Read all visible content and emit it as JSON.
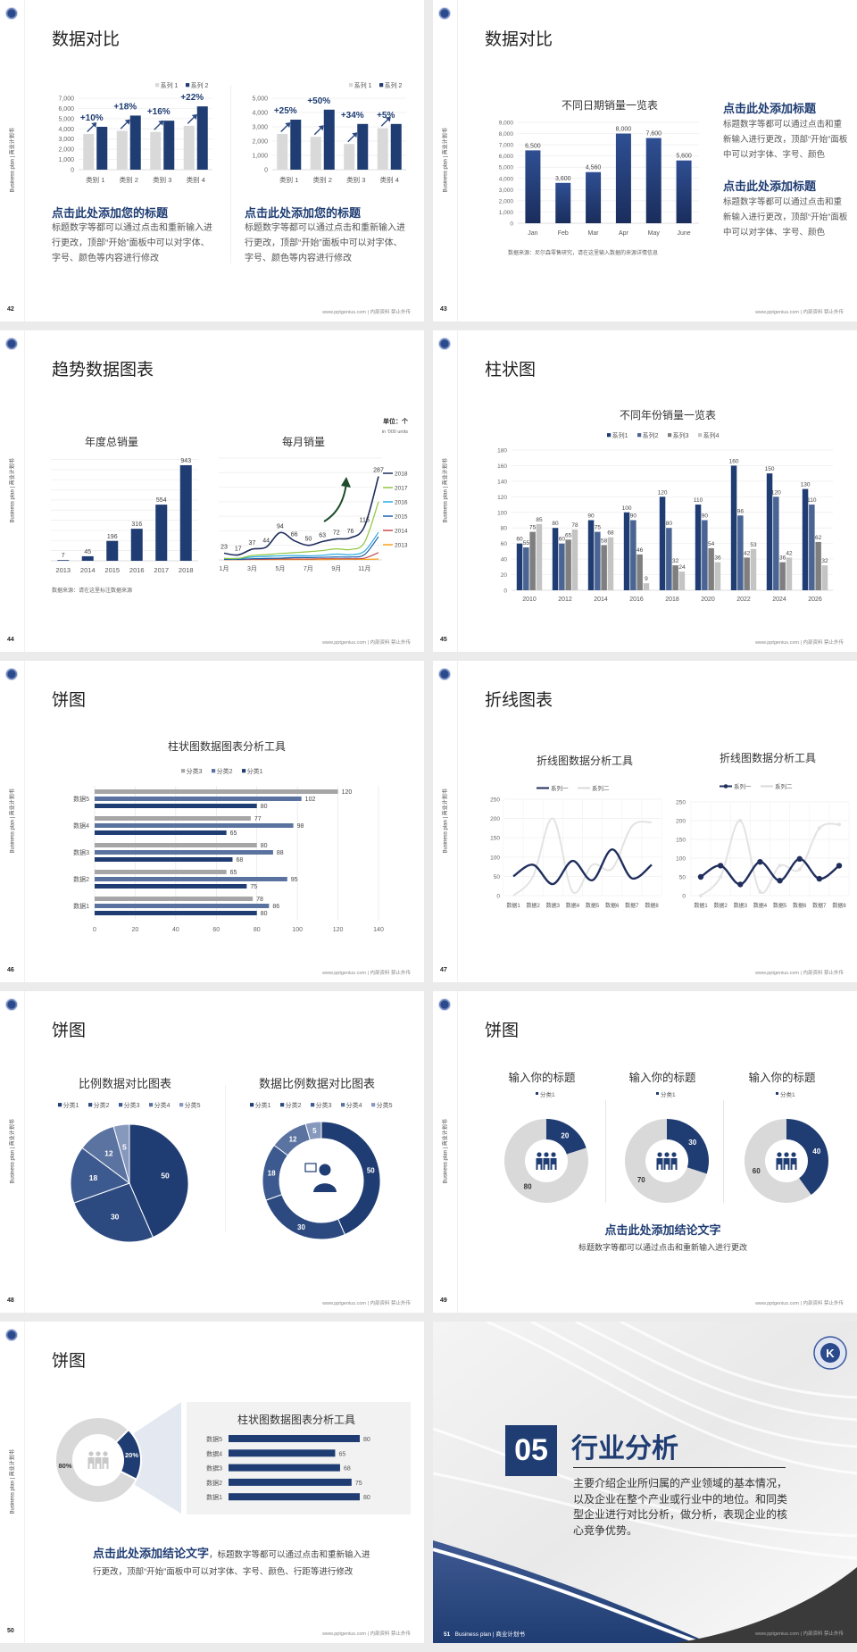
{
  "common": {
    "side_label": "Business plan | 商业计划书",
    "footer": "www.pptgenius.com | 内部资料 禁止外传"
  },
  "colors": {
    "navy": "#1f3d73",
    "light_gray": "#d9d9d9",
    "page_bg": "#ebebeb"
  },
  "slides": [
    {
      "page": "42",
      "title": "数据对比",
      "left": {
        "heading": "点击此处添加您的标题",
        "body": "标题数字等都可以通过点击和重新输入进行更改，顶部“开始”面板中可以对字体、字号、颜色等内容进行修改"
      },
      "right": {
        "heading": "点击此处添加您的标题",
        "body": "标题数字等都可以通过点击和重新输入进行更改，顶部“开始”面板中可以对字体、字号、颜色等内容进行修改"
      }
    },
    {
      "page": "43",
      "title": "数据对比",
      "source": "数据来源：尼尔森零售研究，请在这里输入数据的来源详情信息",
      "blocks": [
        {
          "heading": "点击此处添加标题",
          "body": "标题数字等都可以通过点击和重新输入进行更改，顶部“开始”面板中可以对字体、字号、颜色"
        },
        {
          "heading": "点击此处添加标题",
          "body": "标题数字等都可以通过点击和重新输入进行更改，顶部“开始”面板中可以对字体、字号、颜色"
        }
      ]
    },
    {
      "page": "44",
      "title": "趋势数据图表",
      "source": "数据来源：请在这里标注数据来源",
      "unit": "单位：个",
      "unit_en": "in '000 units"
    },
    {
      "page": "45",
      "title": "柱状图"
    },
    {
      "page": "46",
      "title": "饼图"
    },
    {
      "page": "47",
      "title": "折线图表"
    },
    {
      "page": "48",
      "title": "饼图"
    },
    {
      "page": "49",
      "title": "饼图",
      "conclusion": {
        "heading": "点击此处添加结论文字",
        "body": "标题数字等都可以通过点击和重新输入进行更改"
      }
    },
    {
      "page": "50",
      "title": "饼图",
      "conclusion": {
        "heading": "点击此处添加结论文字",
        "body": "，标题数字等都可以通过点击和重新输入进行更改，顶部“开始”面板中可以对字体、字号、颜色、行距等进行修改"
      }
    },
    {
      "page": "51",
      "number": "05",
      "title": "行业分析",
      "side_label": "Business plan | 商业计划书",
      "body": "主要介绍企业所归属的产业领域的基本情况，以及企业在整个产业或行业中的地位。和同类型企业进行对比分析，做分析，表现企业的核心竞争优势。"
    }
  ],
  "chart_data": [
    {
      "type": "bar",
      "categories": [
        "类别 1",
        "类别 2",
        "类别 3",
        "类别 4"
      ],
      "series": [
        {
          "name": "系列 1",
          "color": "#d9d9d9",
          "values": [
            3500,
            3800,
            3700,
            4300
          ]
        },
        {
          "name": "系列 2",
          "color": "#1f3d73",
          "values": [
            4200,
            5300,
            4800,
            6200
          ]
        }
      ],
      "ylim": [
        0,
        7000
      ],
      "yticks": [
        "0",
        "1,000",
        "2,000",
        "3,000",
        "4,000",
        "5,000",
        "6,000",
        "7,000"
      ],
      "annotations": [
        "+10%",
        "+18%",
        "+16%",
        "+22%"
      ],
      "legend": "top-right",
      "grid": true
    },
    {
      "type": "bar",
      "categories": [
        "类别 1",
        "类别 2",
        "类别 3",
        "类别 4"
      ],
      "series": [
        {
          "name": "系列 1",
          "color": "#d9d9d9",
          "values": [
            2500,
            2300,
            1800,
            2900
          ]
        },
        {
          "name": "系列 2",
          "color": "#1f3d73",
          "values": [
            3500,
            4200,
            3200,
            3200
          ]
        }
      ],
      "ylim": [
        0,
        5000
      ],
      "yticks": [
        "0",
        "1,000",
        "2,000",
        "3,000",
        "4,000",
        "5,000"
      ],
      "annotations": [
        "+25%",
        "+50%",
        "+34%",
        "+5%"
      ],
      "legend": "top-right",
      "grid": true
    },
    {
      "type": "bar",
      "title": "不同日期销量一览表",
      "categories": [
        "Jan",
        "Feb",
        "Mar",
        "Apr",
        "May",
        "June"
      ],
      "series": [
        {
          "color": "#1f3d73",
          "values": [
            6500,
            3600,
            4560,
            8000,
            7600,
            5600
          ],
          "labels": [
            "6,500",
            "3,600",
            "4,560",
            "8,000",
            "7,600",
            "5,600"
          ]
        }
      ],
      "ylim": [
        0,
        9000
      ],
      "yticks": [
        "0",
        "1,000",
        "2,000",
        "3,000",
        "4,000",
        "5,000",
        "6,000",
        "7,000",
        "8,000",
        "9,000"
      ],
      "grid": true
    },
    {
      "type": "bar",
      "title": "年度总销量",
      "categories": [
        "2013",
        "2014",
        "2015",
        "2016",
        "2017",
        "2018"
      ],
      "series": [
        {
          "color": "#1f3d73",
          "values": [
            7,
            45,
            196,
            316,
            554,
            943
          ]
        }
      ],
      "ylim": [
        0,
        1000
      ],
      "grid": true
    },
    {
      "type": "line",
      "title": "每月销量",
      "x": [
        1,
        2,
        3,
        4,
        5,
        6,
        7,
        8,
        9,
        10,
        11,
        12
      ],
      "xticks": [
        "1月",
        "3月",
        "5月",
        "7月",
        "9月",
        "11月"
      ],
      "ylim": [
        0,
        350
      ],
      "grid": true,
      "legend": "right",
      "series": [
        {
          "name": "2018",
          "color": "#1f2e5c",
          "values": [
            23,
            17,
            37,
            44,
            94,
            66,
            50,
            63,
            72,
            76,
            115,
            287
          ],
          "labelled": true
        },
        {
          "name": "2017",
          "color": "#8dc63f",
          "values": [
            5,
            5,
            15,
            18,
            22,
            25,
            28,
            32,
            38,
            36,
            60,
            200
          ]
        },
        {
          "name": "2016",
          "color": "#29abe2",
          "values": [
            5,
            5,
            10,
            12,
            14,
            15,
            14,
            16,
            20,
            18,
            30,
            95
          ]
        },
        {
          "name": "2015",
          "color": "#1f5fa8",
          "values": [
            2,
            2,
            4,
            5,
            6,
            8,
            8,
            9,
            10,
            10,
            18,
            80
          ]
        },
        {
          "name": "2014",
          "color": "#c0504d",
          "values": [
            1,
            1,
            2,
            2,
            3,
            3,
            3,
            4,
            4,
            4,
            6,
            25
          ]
        },
        {
          "name": "2013",
          "color": "#f7a21b",
          "values": [
            1,
            1,
            1,
            1,
            1,
            1,
            1,
            1,
            2,
            2,
            2,
            3
          ]
        }
      ]
    },
    {
      "type": "bar",
      "title": "不同年份销量一览表",
      "categories": [
        "2010",
        "2012",
        "2014",
        "2016",
        "2018",
        "2020",
        "2022",
        "2024",
        "2026"
      ],
      "series": [
        {
          "name": "系列1",
          "color": "#1f3d73",
          "values": [
            60,
            80,
            90,
            100,
            120,
            110,
            160,
            150,
            130
          ]
        },
        {
          "name": "系列2",
          "color": "#4a6494",
          "values": [
            55,
            60,
            75,
            90,
            80,
            90,
            96,
            120,
            110
          ]
        },
        {
          "name": "系列3",
          "color": "#7f7f7f",
          "values": [
            75,
            65,
            58,
            46,
            32,
            54,
            42,
            36,
            62
          ]
        },
        {
          "name": "系列4",
          "color": "#c4c4c4",
          "values": [
            85,
            78,
            68,
            9,
            24,
            36,
            53,
            42,
            32
          ]
        }
      ],
      "ylim": [
        0,
        180
      ],
      "yticks": [
        "0",
        "20",
        "40",
        "60",
        "80",
        "100",
        "120",
        "140",
        "160",
        "180"
      ],
      "legend": "top",
      "grid": true
    },
    {
      "type": "bar",
      "orientation": "horizontal",
      "title": "柱状图数据图表分析工具",
      "categories": [
        "数据1",
        "数据2",
        "数据3",
        "数据4",
        "数据5"
      ],
      "series": [
        {
          "name": "分类3",
          "color": "#a6a6a6",
          "values": [
            78,
            65,
            80,
            77,
            120
          ]
        },
        {
          "name": "分类2",
          "color": "#5a72a0",
          "values": [
            86,
            95,
            88,
            98,
            102
          ]
        },
        {
          "name": "分类1",
          "color": "#1f3d73",
          "values": [
            80,
            75,
            68,
            65,
            80
          ]
        }
      ],
      "xlim": [
        0,
        140
      ],
      "xticks": [
        "0",
        "20",
        "40",
        "60",
        "80",
        "100",
        "120",
        "140"
      ],
      "legend": "top",
      "grid": true
    },
    {
      "type": "line",
      "title": "折线图数据分析工具",
      "categories": [
        "数据1",
        "数据2",
        "数据3",
        "数据4",
        "数据5",
        "数据6",
        "数据7",
        "数据8"
      ],
      "series": [
        {
          "name": "系列一",
          "color": "#1f2e5c",
          "values": [
            50,
            80,
            30,
            90,
            40,
            120,
            45,
            80
          ]
        },
        {
          "name": "系列二",
          "color": "#e3e3e3",
          "values": [
            0,
            50,
            200,
            10,
            80,
            70,
            180,
            190
          ]
        }
      ],
      "ylim": [
        0,
        250
      ],
      "yticks": [
        "0",
        "50",
        "100",
        "150",
        "200",
        "250"
      ],
      "smooth": true,
      "markers": false,
      "legend": "top",
      "grid": true
    },
    {
      "type": "line",
      "title": "折线图数据分析工具",
      "categories": [
        "数据1",
        "数据2",
        "数据3",
        "数据4",
        "数据5",
        "数据6",
        "数据7",
        "数据8"
      ],
      "series": [
        {
          "name": "系列一",
          "color": "#1f2e5c",
          "values": [
            50,
            80,
            30,
            90,
            40,
            98,
            45,
            80
          ]
        },
        {
          "name": "系列二",
          "color": "#e3e3e3",
          "values": [
            0,
            50,
            200,
            10,
            80,
            70,
            180,
            190
          ]
        }
      ],
      "ylim": [
        0,
        250
      ],
      "yticks": [
        "0",
        "50",
        "100",
        "150",
        "200",
        "250"
      ],
      "smooth": true,
      "markers": true,
      "legend": "top",
      "grid": true
    },
    {
      "type": "pie",
      "title": "比例数据对比图表",
      "categories": [
        "分类1",
        "分类2",
        "分类3",
        "分类4",
        "分类5"
      ],
      "values": [
        50,
        30,
        18,
        12,
        5
      ],
      "colors": [
        "#1f3d73",
        "#2c4a80",
        "#3d5a90",
        "#5b73a1",
        "#8798bd"
      ],
      "legend": "top"
    },
    {
      "type": "pie",
      "donut": true,
      "title": "数据比例数据对比图表",
      "categories": [
        "分类1",
        "分类2",
        "分类3",
        "分类4",
        "分类5"
      ],
      "values": [
        50,
        30,
        18,
        12,
        5
      ],
      "colors": [
        "#1f3d73",
        "#2c4a80",
        "#3d5a90",
        "#5b73a1",
        "#8798bd"
      ],
      "legend": "top",
      "center_icon": "person-chat-icon"
    },
    {
      "type": "pie",
      "donut": true,
      "title": "输入你的标题",
      "legend_label": "分类1",
      "values": [
        20,
        80
      ],
      "colors": [
        "#1f3d73",
        "#d9d9d9"
      ],
      "center_icon": "team-icon"
    },
    {
      "type": "pie",
      "donut": true,
      "title": "输入你的标题",
      "legend_label": "分类1",
      "values": [
        30,
        70
      ],
      "colors": [
        "#1f3d73",
        "#d9d9d9"
      ],
      "center_icon": "team-icon"
    },
    {
      "type": "pie",
      "donut": true,
      "title": "输入你的标题",
      "legend_label": "分类1",
      "values": [
        40,
        60
      ],
      "colors": [
        "#1f3d73",
        "#d9d9d9"
      ],
      "center_icon": "team-icon"
    },
    {
      "type": "pie",
      "donut": true,
      "values": [
        20,
        80
      ],
      "labels": [
        "20%",
        "80%"
      ],
      "colors": [
        "#1f3d73",
        "#d9d9d9"
      ],
      "center_icon": "team-icon"
    },
    {
      "type": "bar",
      "orientation": "horizontal",
      "title": "柱状图数据图表分析工具",
      "categories": [
        "数据5",
        "数据4",
        "数据3",
        "数据2",
        "数据1"
      ],
      "series": [
        {
          "color": "#1f3d73",
          "values": [
            80,
            65,
            68,
            75,
            80
          ]
        }
      ]
    }
  ]
}
